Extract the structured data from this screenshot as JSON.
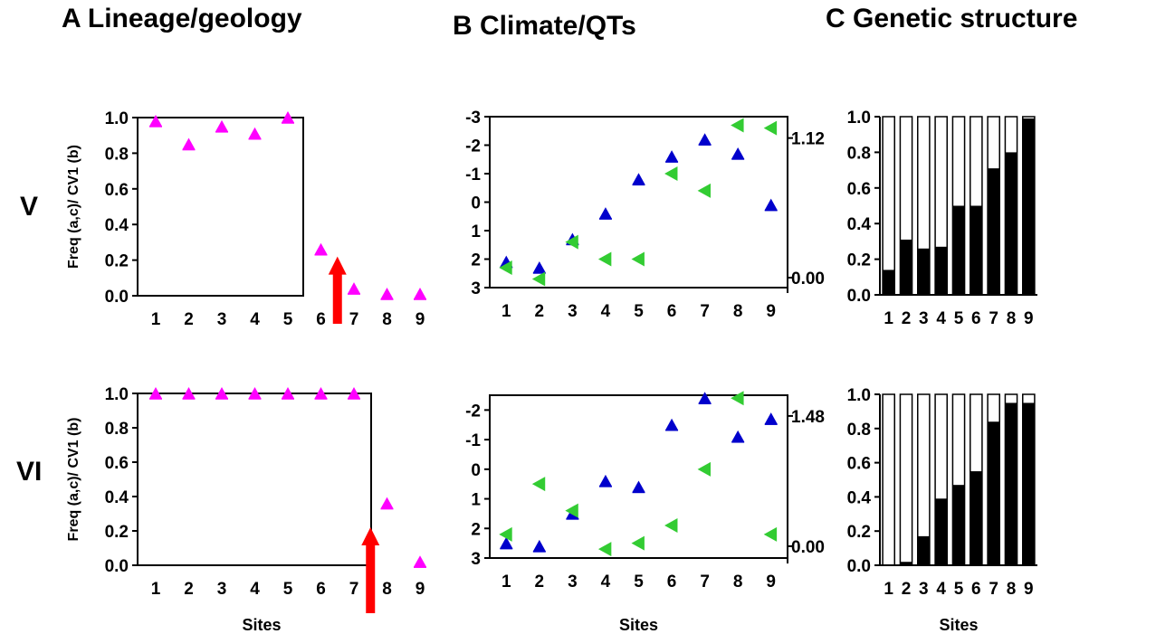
{
  "titles": {
    "A": "A Lineage/geology",
    "B": "B Climate/QTs",
    "C": "C Genetic structure"
  },
  "rows": [
    "V",
    "VI"
  ],
  "colors": {
    "lineage": "#ff00ff",
    "climate_blue": "#0000cc",
    "climate_green": "#33cc33",
    "arrow": "#ff0000",
    "bar": "#000000"
  },
  "chart_data": [
    {
      "id": "A-V",
      "type": "scatter",
      "ylabel": "Freq (a,c)/ CV1 (b)",
      "xlabel": "",
      "categories": [
        "1",
        "2",
        "3",
        "4",
        "5",
        "6",
        "7",
        "8",
        "9"
      ],
      "yticks": [
        "0.0",
        "0.2",
        "0.4",
        "0.6",
        "0.8",
        "1.0"
      ],
      "ylim": [
        0,
        1
      ],
      "values": [
        0.98,
        0.85,
        0.95,
        0.91,
        1.0,
        0.26,
        0.04,
        0.01,
        0.01
      ],
      "arrow_between_sites": [
        6,
        7
      ],
      "arrow_to": 0.2
    },
    {
      "id": "B-V",
      "type": "scatter",
      "yticks": [
        "-3",
        "-2",
        "-1",
        "0",
        "1",
        "2",
        "3"
      ],
      "ylim": [
        -3,
        3
      ],
      "y_inverted": true,
      "right_ticks": [
        "1.12",
        "0.00"
      ],
      "right_ticks_at_left_scale": [
        -2.25,
        2.65
      ],
      "categories": [
        "1",
        "2",
        "3",
        "4",
        "5",
        "6",
        "7",
        "8",
        "9"
      ],
      "series": [
        {
          "marker": "triangle-up",
          "values": [
            2.1,
            2.3,
            1.3,
            0.4,
            -0.8,
            -1.6,
            -2.2,
            -1.7,
            0.1
          ]
        },
        {
          "marker": "triangle-left",
          "values": [
            2.3,
            2.7,
            1.4,
            2.0,
            2.0,
            -1.0,
            -0.4,
            -2.7,
            -2.6
          ]
        }
      ]
    },
    {
      "id": "C-V",
      "type": "bar",
      "stacked": true,
      "categories": [
        "1",
        "2",
        "3",
        "4",
        "5",
        "6",
        "7",
        "8",
        "9"
      ],
      "yticks": [
        "0.0",
        "0.2",
        "0.4",
        "0.6",
        "0.8",
        "1.0"
      ],
      "ylim": [
        0,
        1
      ],
      "values": [
        0.14,
        0.31,
        0.26,
        0.27,
        0.5,
        0.5,
        0.71,
        0.8,
        0.99
      ]
    },
    {
      "id": "A-VI",
      "type": "scatter",
      "ylabel": "Freq (a,c)/ CV1 (b)",
      "xlabel": "Sites",
      "categories": [
        "1",
        "2",
        "3",
        "4",
        "5",
        "6",
        "7",
        "8",
        "9"
      ],
      "yticks": [
        "0.0",
        "0.2",
        "0.4",
        "0.6",
        "0.8",
        "1.0"
      ],
      "ylim": [
        0,
        1
      ],
      "values": [
        1.0,
        1.0,
        1.0,
        1.0,
        1.0,
        1.0,
        1.0,
        0.36,
        0.02
      ],
      "arrow_between_sites": [
        7,
        8
      ],
      "arrow_to": 0.2
    },
    {
      "id": "B-VI",
      "type": "scatter",
      "xlabel": "Sites",
      "yticks": [
        "-2",
        "-1",
        "0",
        "1",
        "2",
        "3"
      ],
      "ylim": [
        -2.5,
        3
      ],
      "y_inverted": true,
      "right_ticks": [
        "1.48",
        "0.00"
      ],
      "right_ticks_at_left_scale": [
        -1.8,
        2.6
      ],
      "categories": [
        "1",
        "2",
        "3",
        "4",
        "5",
        "6",
        "7",
        "8",
        "9"
      ],
      "series": [
        {
          "marker": "triangle-up",
          "values": [
            2.5,
            2.6,
            1.5,
            0.4,
            0.6,
            -1.5,
            -2.4,
            -1.1,
            -1.7
          ]
        },
        {
          "marker": "triangle-left",
          "values": [
            2.2,
            0.5,
            1.4,
            2.7,
            2.5,
            1.9,
            0.0,
            -2.4,
            2.2
          ]
        }
      ]
    },
    {
      "id": "C-VI",
      "type": "bar",
      "stacked": true,
      "xlabel": "Sites",
      "categories": [
        "1",
        "2",
        "3",
        "4",
        "5",
        "6",
        "7",
        "8",
        "9"
      ],
      "yticks": [
        "0.0",
        "0.2",
        "0.4",
        "0.6",
        "0.8",
        "1.0"
      ],
      "ylim": [
        0,
        1
      ],
      "values": [
        0.0,
        0.02,
        0.17,
        0.39,
        0.47,
        0.55,
        0.84,
        0.95,
        0.95
      ]
    }
  ]
}
